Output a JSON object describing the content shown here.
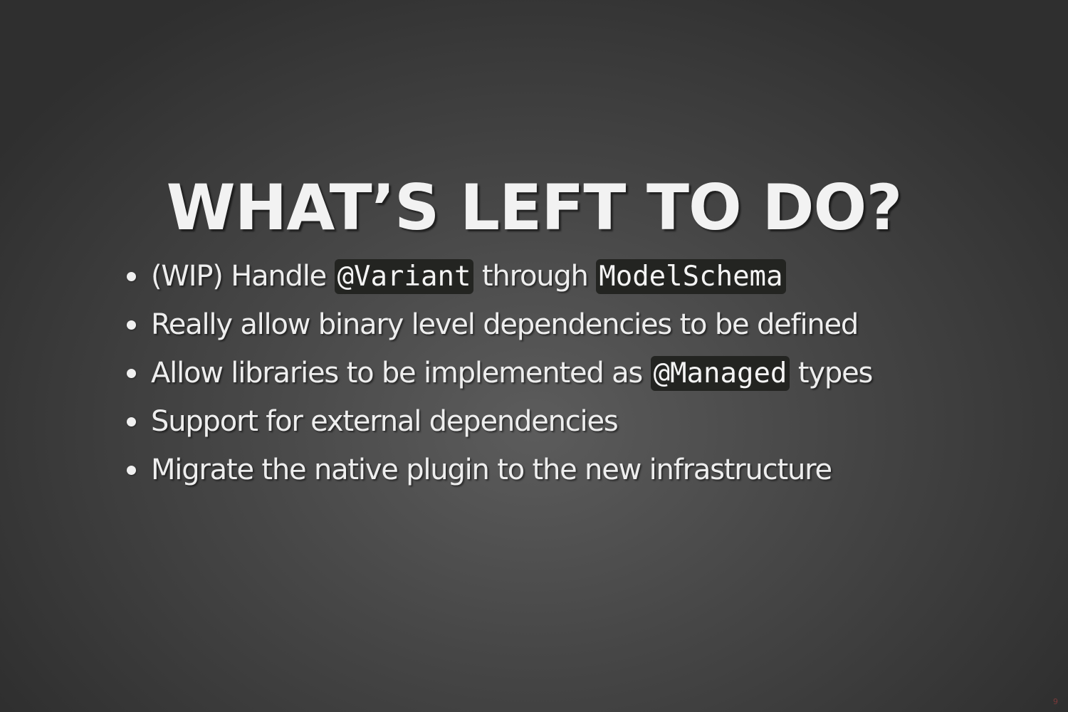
{
  "slide": {
    "title": "WHAT’S LEFT TO DO?",
    "bullets": [
      {
        "parts": [
          {
            "type": "text",
            "value": "(WIP) Handle "
          },
          {
            "type": "code",
            "value": "@Variant"
          },
          {
            "type": "text",
            "value": " through "
          },
          {
            "type": "code",
            "value": "ModelSchema"
          }
        ]
      },
      {
        "parts": [
          {
            "type": "text",
            "value": "Really allow binary level dependencies to be defined"
          }
        ]
      },
      {
        "parts": [
          {
            "type": "text",
            "value": "Allow libraries to be implemented as "
          },
          {
            "type": "code",
            "value": "@Managed"
          },
          {
            "type": "text",
            "value": " types"
          }
        ]
      },
      {
        "parts": [
          {
            "type": "text",
            "value": "Support for external dependencies"
          }
        ]
      },
      {
        "parts": [
          {
            "type": "text",
            "value": "Migrate the native plugin to the new infrastructure"
          }
        ]
      }
    ],
    "page_number": "9"
  },
  "colors": {
    "background_center": "#5c5c5c",
    "background_edge": "#2f2f2f",
    "text": "#eeeeee",
    "code_background": "#232421"
  }
}
